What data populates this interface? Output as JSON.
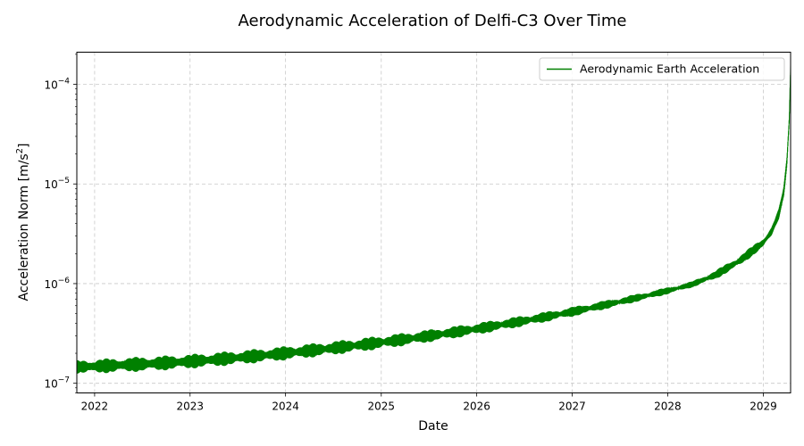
{
  "chart_data": {
    "type": "line",
    "title": "Aerodynamic Acceleration of Delfi-C3 Over Time",
    "xlabel": "Date",
    "ylabel_main": "Acceleration Norm [m/s",
    "ylabel_sup": "2",
    "ylabel_end": "]",
    "y_scale": "log",
    "xlim": [
      "2021-10-25",
      "2029-04-15"
    ],
    "ylim": [
      8e-08,
      0.00021
    ],
    "grid": true,
    "grid_style": "dashed",
    "legend_location": "top-right",
    "x_ticks": [
      {
        "date": "2022-01-01",
        "label": "2022"
      },
      {
        "date": "2023-01-01",
        "label": "2023"
      },
      {
        "date": "2024-01-01",
        "label": "2024"
      },
      {
        "date": "2025-01-01",
        "label": "2025"
      },
      {
        "date": "2026-01-01",
        "label": "2026"
      },
      {
        "date": "2027-01-01",
        "label": "2027"
      },
      {
        "date": "2028-01-01",
        "label": "2028"
      },
      {
        "date": "2029-01-01",
        "label": "2029"
      }
    ],
    "y_ticks": [
      {
        "value": 1e-07,
        "base": "10",
        "exp": "−7"
      },
      {
        "value": 1e-06,
        "base": "10",
        "exp": "−6"
      },
      {
        "value": 1e-05,
        "base": "10",
        "exp": "−5"
      },
      {
        "value": 0.0001,
        "base": "10",
        "exp": "−4"
      }
    ],
    "series": [
      {
        "name": "Aerodynamic Earth Acceleration",
        "color": "#008000",
        "x": [
          "2021-10-25",
          "2022-01-01",
          "2022-04-01",
          "2022-07-01",
          "2022-10-01",
          "2023-01-01",
          "2023-04-01",
          "2023-07-01",
          "2023-10-01",
          "2024-01-01",
          "2024-04-01",
          "2024-07-01",
          "2024-10-01",
          "2025-01-01",
          "2025-04-01",
          "2025-07-01",
          "2025-10-01",
          "2026-01-01",
          "2026-04-01",
          "2026-07-01",
          "2026-10-01",
          "2027-01-01",
          "2027-04-01",
          "2027-07-01",
          "2027-10-01",
          "2028-01-01",
          "2028-04-01",
          "2028-07-01",
          "2028-10-01",
          "2029-01-01",
          "2029-02-01",
          "2029-03-01",
          "2029-03-20",
          "2029-04-01",
          "2029-04-10",
          "2029-04-15"
        ],
        "y_low": [
          1.25e-07,
          1.25e-07,
          1.28e-07,
          1.31e-07,
          1.35e-07,
          1.4e-07,
          1.46e-07,
          1.53e-07,
          1.61e-07,
          1.7e-07,
          1.8e-07,
          1.92e-07,
          2.05e-07,
          2.2e-07,
          2.37e-07,
          2.57e-07,
          2.8e-07,
          3.06e-07,
          3.37e-07,
          3.72e-07,
          4.15e-07,
          4.65e-07,
          5.25e-07,
          5.95e-07,
          6.8e-07,
          7.8e-07,
          9.1e-07,
          1.1e-06,
          1.5e-06,
          2.3e-06,
          3e-06,
          4.5e-06,
          7.5e-06,
          1.5e-05,
          4e-05,
          0.00014
        ],
        "y_high": [
          1.7e-07,
          1.75e-07,
          1.8e-07,
          1.85e-07,
          1.9e-07,
          1.96e-07,
          2.04e-07,
          2.13e-07,
          2.24e-07,
          2.36e-07,
          2.5e-07,
          2.65e-07,
          2.82e-07,
          3.01e-07,
          3.22e-07,
          3.46e-07,
          3.73e-07,
          4.04e-07,
          4.4e-07,
          4.8e-07,
          5.28e-07,
          5.85e-07,
          6.5e-07,
          7.25e-07,
          8.15e-07,
          9.2e-07,
          1.05e-06,
          1.35e-06,
          1.9e-06,
          2.9e-06,
          3.7e-06,
          5.6e-06,
          9.5e-06,
          1.9e-05,
          5e-05,
          0.00016
        ]
      }
    ]
  }
}
